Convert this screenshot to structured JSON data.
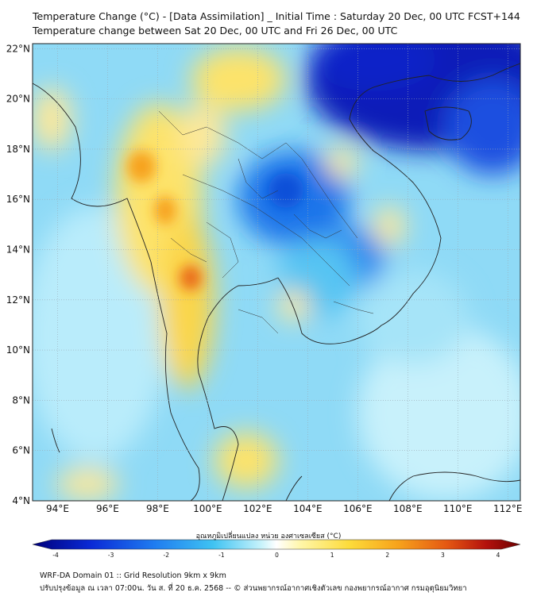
{
  "header": {
    "title_line1": "Temperature Change (°C) - [Data Assimilation] _ Initial Time : Saturday 20 Dec, 00 UTC FCST+144",
    "title_line2": "Temperature change between Sat 20 Dec, 00 UTC and Fri 26 Dec, 00 UTC"
  },
  "map": {
    "lon_ticks": [
      "94°E",
      "96°E",
      "98°E",
      "100°E",
      "102°E",
      "104°E",
      "106°E",
      "108°E",
      "110°E",
      "112°E"
    ],
    "lat_ticks": [
      "22°N",
      "20°N",
      "18°N",
      "16°N",
      "14°N",
      "12°N",
      "10°N",
      "8°N",
      "6°N",
      "4°N"
    ],
    "lon_range": [
      93,
      112.5
    ],
    "lat_range": [
      4,
      22.2
    ],
    "grid": true
  },
  "colorbar": {
    "label": "อุณหภูมิเปลี่ยนแปลง หน่วย องศาเซลเซียส (°C)",
    "ticks": [
      "-4",
      "-3",
      "-2",
      "-1",
      "0",
      "1",
      "2",
      "3",
      "4"
    ],
    "range": [
      -4,
      4
    ],
    "colors": [
      "#00007a",
      "#0a2ad6",
      "#1f7cf0",
      "#3fc3f2",
      "#c9f3fb",
      "#ffffff",
      "#fff6a8",
      "#fddb3a",
      "#f7a21b",
      "#e45712",
      "#b4110d",
      "#6b0000"
    ]
  },
  "footer": {
    "line1": "WRF-DA Domain 01 :: Grid Resolution 9km x 9km",
    "line2": "ปรับปรุงข้อมูล ณ เวลา 07:00น. วัน ส. ที่ 20 ธ.ค. 2568 -- © ส่วนพยากรณ์อากาศเชิงตัวเลข กองพยากรณ์อากาศ กรมอุตุนิยมวิทยา"
  }
}
